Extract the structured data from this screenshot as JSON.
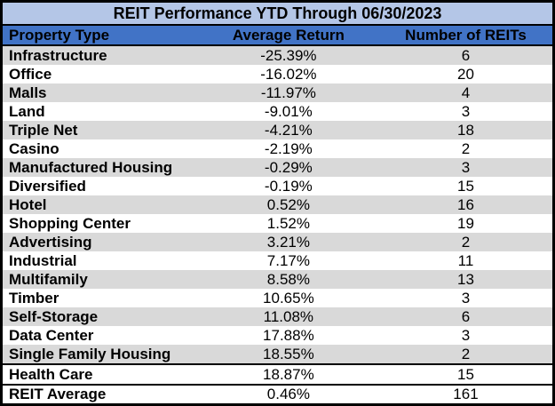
{
  "colors": {
    "title_bg": "#B4C6E7",
    "header_bg": "#4173C6",
    "band_bg": "#D9D9D9",
    "border": "#000000",
    "text": "#000000"
  },
  "chart_data": {
    "type": "table",
    "title": "REIT Performance YTD Through 06/30/2023",
    "columns": [
      "Property Type",
      "Average Return",
      "Number of REITs"
    ],
    "rows": [
      {
        "property_type": "Infrastructure",
        "average_return": "-25.39%",
        "number_of_reits": "6"
      },
      {
        "property_type": "Office",
        "average_return": "-16.02%",
        "number_of_reits": "20"
      },
      {
        "property_type": "Malls",
        "average_return": "-11.97%",
        "number_of_reits": "4"
      },
      {
        "property_type": "Land",
        "average_return": "-9.01%",
        "number_of_reits": "3"
      },
      {
        "property_type": "Triple Net",
        "average_return": "-4.21%",
        "number_of_reits": "18"
      },
      {
        "property_type": "Casino",
        "average_return": "-2.19%",
        "number_of_reits": "2"
      },
      {
        "property_type": "Manufactured Housing",
        "average_return": "-0.29%",
        "number_of_reits": "3"
      },
      {
        "property_type": "Diversified",
        "average_return": "-0.19%",
        "number_of_reits": "15"
      },
      {
        "property_type": "Hotel",
        "average_return": "0.52%",
        "number_of_reits": "16"
      },
      {
        "property_type": "Shopping Center",
        "average_return": "1.52%",
        "number_of_reits": "19"
      },
      {
        "property_type": "Advertising",
        "average_return": "3.21%",
        "number_of_reits": "2"
      },
      {
        "property_type": "Industrial",
        "average_return": "7.17%",
        "number_of_reits": "11"
      },
      {
        "property_type": "Multifamily",
        "average_return": "8.58%",
        "number_of_reits": "13"
      },
      {
        "property_type": "Timber",
        "average_return": "10.65%",
        "number_of_reits": "3"
      },
      {
        "property_type": "Self-Storage",
        "average_return": "11.08%",
        "number_of_reits": "6"
      },
      {
        "property_type": "Data Center",
        "average_return": "17.88%",
        "number_of_reits": "3"
      },
      {
        "property_type": "Single Family Housing",
        "average_return": "18.55%",
        "number_of_reits": "2"
      },
      {
        "property_type": "Health Care",
        "average_return": "18.87%",
        "number_of_reits": "15"
      }
    ],
    "footer_row": {
      "property_type": "REIT Average",
      "average_return": "0.46%",
      "number_of_reits": "161"
    },
    "layout": {
      "banded_rows": true,
      "first_data_row_band": "gray",
      "grid": "no interior column lines; separators under title, under header, above last data row and above footer",
      "column_alignment": [
        "left",
        "center",
        "center"
      ]
    }
  }
}
